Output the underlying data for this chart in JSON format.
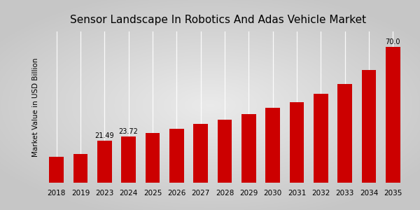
{
  "title": "Sensor Landscape In Robotics And Adas Vehicle Market",
  "ylabel": "Market Value in USD Billion",
  "categories": [
    "2018",
    "2019",
    "2023",
    "2024",
    "2025",
    "2026",
    "2027",
    "2028",
    "2029",
    "2030",
    "2031",
    "2032",
    "2033",
    "2034",
    "2035"
  ],
  "values": [
    13.5,
    14.8,
    21.49,
    23.72,
    25.8,
    27.8,
    30.5,
    32.5,
    35.5,
    38.5,
    41.5,
    46.0,
    51.0,
    58.0,
    70.0
  ],
  "bar_color": "#cc0000",
  "bg_center_color": "#f5f5f5",
  "bg_edge_color": "#c8c8c8",
  "labeled_bars": {
    "2023": "21.49",
    "2024": "23.72",
    "2035": "70.0"
  },
  "ylim": [
    0,
    78
  ],
  "title_fontsize": 11,
  "label_fontsize": 7,
  "tick_fontsize": 7.5,
  "bottom_stripe_color": "#cc0000",
  "grid_color": "#cccccc"
}
